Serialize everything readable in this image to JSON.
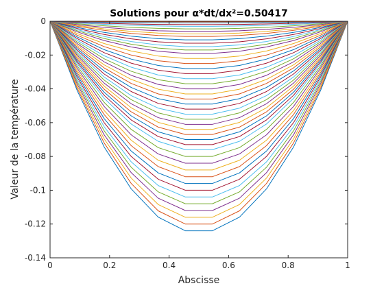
{
  "chart_data": {
    "type": "line",
    "title": "Solutions pour α*dt/dx²=0.50417",
    "xlabel": "Abscisse",
    "ylabel": "Valeur de la température",
    "xlim": [
      0,
      1
    ],
    "ylim": [
      -0.14,
      0
    ],
    "x_ticks": [
      "0",
      "0.2",
      "0.4",
      "0.6",
      "0.8",
      "1"
    ],
    "y_ticks": [
      "0",
      "-0.02",
      "-0.04",
      "-0.06",
      "-0.08",
      "-0.1",
      "-0.12",
      "-0.14"
    ],
    "grid": false,
    "legend": "none",
    "x": [
      0,
      0.0909,
      0.1818,
      0.2727,
      0.3636,
      0.4545,
      0.5455,
      0.6364,
      0.7273,
      0.8182,
      0.9091,
      1
    ],
    "curve_minimum_values": [
      -0.124,
      -0.12,
      -0.116,
      -0.112,
      -0.108,
      -0.104,
      -0.1,
      -0.096,
      -0.092,
      -0.088,
      -0.084,
      -0.08,
      -0.076,
      -0.073,
      -0.07,
      -0.067,
      -0.064,
      -0.061,
      -0.058,
      -0.055,
      -0.052,
      -0.049,
      -0.046,
      -0.043,
      -0.04,
      -0.037,
      -0.034,
      -0.031,
      -0.028,
      -0.025,
      -0.022,
      -0.019,
      -0.017,
      -0.015,
      -0.013,
      -0.011,
      -0.009,
      -0.0075,
      -0.006,
      -0.0045,
      -0.003,
      -0.002,
      -0.001,
      -0.0004
    ],
    "curve_shape": [
      0,
      0.33,
      0.6,
      0.8,
      0.935,
      1,
      1,
      0.935,
      0.8,
      0.6,
      0.33,
      0
    ],
    "series_colors": [
      "#0072BD",
      "#D95319",
      "#EDB120",
      "#7E2F8E",
      "#77AC30",
      "#4DBEEE",
      "#A2142F"
    ]
  }
}
